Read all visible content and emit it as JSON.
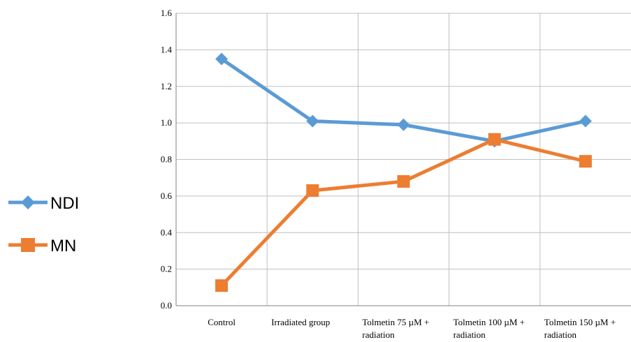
{
  "chart_data": {
    "type": "line",
    "categories": [
      [
        "Control"
      ],
      [
        "Irradiated group"
      ],
      [
        "Tolmetin 75 µM +",
        "radiation"
      ],
      [
        "Tolmetin 100 µM +",
        "radiation"
      ],
      [
        "Tolmetin 150 µM +",
        "radiation"
      ]
    ],
    "series": [
      {
        "name": "NDI",
        "values": [
          1.35,
          1.01,
          0.99,
          0.9,
          1.01
        ],
        "color": "#5B9BD5",
        "marker": "diamond"
      },
      {
        "name": "MN",
        "values": [
          0.11,
          0.63,
          0.68,
          0.91,
          0.79
        ],
        "color": "#ED7D31",
        "marker": "square"
      }
    ],
    "ylim": [
      0,
      1.6
    ],
    "yticks": [
      "0.0",
      "0.2",
      "0.4",
      "0.6",
      "0.8",
      "1.0",
      "1.2",
      "1.4",
      "1.6"
    ],
    "grid": true,
    "legend_position": "left"
  }
}
